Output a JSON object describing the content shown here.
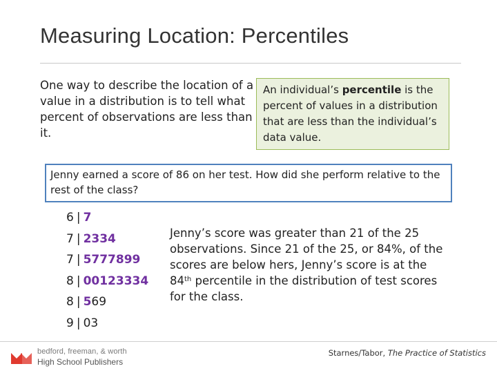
{
  "slide": {
    "title": "Measuring Location: Percentiles"
  },
  "intro": {
    "text": "One way to describe the location of a value in a distribution is to tell what percent of observations are less than it."
  },
  "definition": {
    "before": "An individual’s ",
    "term": "percentile",
    "after": " is the percent of values in a distribution that are less than the individual’s data value."
  },
  "question": {
    "text": "Jenny earned a score of 86 on her test.  How did she perform relative to the rest of the class?"
  },
  "stemplot": {
    "rows": [
      {
        "stem": "6",
        "leaves_purple": "7",
        "leaves_dark": ""
      },
      {
        "stem": "7",
        "leaves_purple": "2334",
        "leaves_dark": ""
      },
      {
        "stem": "7",
        "leaves_purple": "5777899",
        "leaves_dark": ""
      },
      {
        "stem": "8",
        "leaves_purple": "00123334",
        "leaves_dark": ""
      },
      {
        "stem": "8",
        "leaves_purple": "5",
        "leaves_dark": "69"
      },
      {
        "stem": "9",
        "leaves_purple": "",
        "leaves_dark": "03"
      }
    ],
    "separator": "|"
  },
  "explanation": {
    "part1": "Jenny’s score was greater than 21 of the 25 observations.  Since 21 of the 25, or 84%, of the scores are below hers, Jenny’s score is at the 84",
    "sup": "th",
    "part2": " percentile in the distribution of test scores for the class."
  },
  "footer": {
    "publisher_line1": "bedford, freeman, & worth",
    "publisher_line2": "High School Publishers",
    "credit_authors": "Starnes/Tabor, ",
    "credit_book": "The Practice of Statistics",
    "logo_color": "#e03a2f"
  },
  "colors": {
    "definition_bg": "#ebf1de",
    "definition_border": "#9bbb59",
    "question_border": "#4f81bd",
    "leaf_highlight": "#7030a0"
  }
}
